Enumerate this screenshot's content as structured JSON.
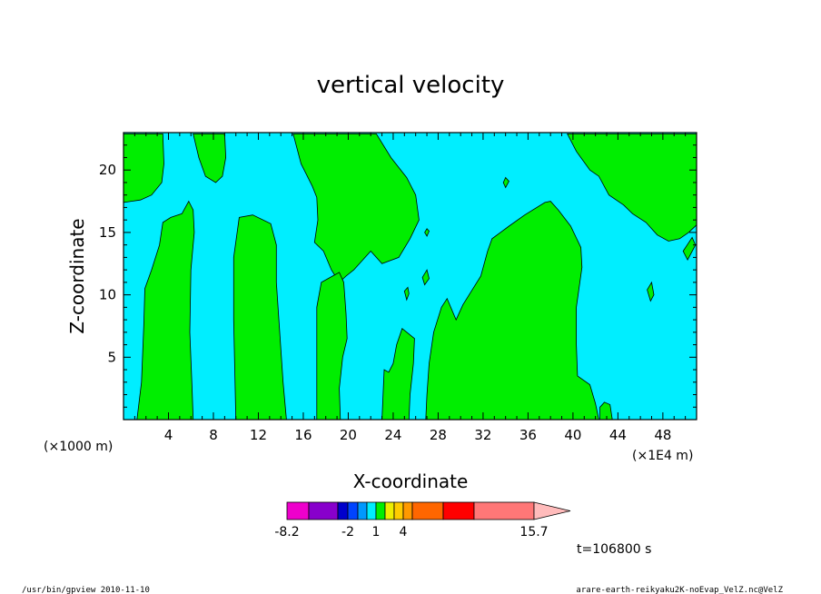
{
  "chart_data": {
    "type": "heatmap",
    "title": "vertical velocity",
    "xlabel": "X-coordinate",
    "ylabel": "Z-coordinate",
    "x_unit_left": "(×1000 m)",
    "x_unit_right": "(×1E4 m)",
    "xlim": [
      0,
      51
    ],
    "ylim": [
      0,
      23
    ],
    "x_ticks": [
      4,
      8,
      12,
      16,
      20,
      24,
      28,
      32,
      36,
      40,
      44,
      48
    ],
    "x_tick_labels": [
      "4",
      "8",
      "12",
      "16",
      "20",
      "24",
      "28",
      "32",
      "36",
      "40",
      "44",
      "48"
    ],
    "y_ticks": [
      5,
      10,
      15,
      20
    ],
    "y_tick_labels": [
      "5",
      "10",
      "15",
      "20"
    ],
    "fill_levels": {
      "background_color": "#00eeff",
      "positive_color": "#00ee00"
    },
    "positive_regions": [
      [
        [
          0,
          22.9
        ],
        [
          3.5,
          22.9
        ],
        [
          3.6,
          20.5
        ],
        [
          3.4,
          19
        ],
        [
          2.5,
          18
        ],
        [
          1.5,
          17.6
        ],
        [
          0.7,
          17.5
        ],
        [
          0,
          17.4
        ]
      ],
      [
        [
          6.2,
          22.9
        ],
        [
          9,
          22.9
        ],
        [
          9.1,
          21
        ],
        [
          8.8,
          19.5
        ],
        [
          8.2,
          19
        ],
        [
          7.3,
          19.5
        ],
        [
          6.7,
          21
        ]
      ],
      [
        [
          15.1,
          22.9
        ],
        [
          22.5,
          22.9
        ],
        [
          23.8,
          21
        ],
        [
          25.2,
          19.4
        ],
        [
          26,
          18
        ],
        [
          26.3,
          16
        ],
        [
          25.5,
          14.5
        ],
        [
          24.5,
          13
        ],
        [
          23,
          12.5
        ],
        [
          22,
          13.5
        ],
        [
          21.5,
          13
        ],
        [
          20.5,
          12
        ],
        [
          19.8,
          11.5
        ],
        [
          19.2,
          11
        ],
        [
          18.5,
          12
        ],
        [
          17.8,
          13.5
        ],
        [
          17,
          14.2
        ],
        [
          17.3,
          16
        ],
        [
          17.2,
          17.8
        ],
        [
          16.8,
          18.7
        ],
        [
          16.3,
          19.6
        ],
        [
          15.8,
          20.5
        ]
      ],
      [
        [
          39.5,
          22.9
        ],
        [
          51,
          22.9
        ],
        [
          51,
          15.6
        ],
        [
          50.3,
          15
        ],
        [
          49.5,
          14.5
        ],
        [
          48.5,
          14.3
        ],
        [
          47.5,
          14.8
        ],
        [
          46.5,
          15.8
        ],
        [
          45.3,
          16.5
        ],
        [
          44.5,
          17.2
        ],
        [
          43.2,
          18
        ],
        [
          42.3,
          19.5
        ],
        [
          41.5,
          20
        ],
        [
          40.3,
          21.5
        ]
      ],
      [
        [
          1.2,
          0
        ],
        [
          6.2,
          0
        ],
        [
          6.1,
          2.5
        ],
        [
          5.9,
          7
        ],
        [
          6,
          12
        ],
        [
          6.3,
          15
        ],
        [
          6.2,
          16.8
        ],
        [
          5.8,
          17.5
        ],
        [
          5.2,
          16.5
        ],
        [
          4.2,
          16.2
        ],
        [
          3.5,
          15.8
        ],
        [
          3.2,
          14
        ],
        [
          2.5,
          12
        ],
        [
          1.9,
          10.5
        ],
        [
          1.8,
          7.5
        ],
        [
          1.6,
          3
        ]
      ],
      [
        [
          10,
          0
        ],
        [
          14.5,
          0
        ],
        [
          14.2,
          3
        ],
        [
          13.9,
          7
        ],
        [
          13.6,
          11
        ],
        [
          13.6,
          14
        ],
        [
          13.1,
          15.7
        ],
        [
          11.5,
          16.4
        ],
        [
          10.3,
          16.2
        ],
        [
          9.8,
          13
        ],
        [
          9.8,
          8
        ],
        [
          9.9,
          4
        ]
      ],
      [
        [
          17.2,
          0
        ],
        [
          19.3,
          0
        ],
        [
          19.2,
          2.5
        ],
        [
          19.5,
          5
        ],
        [
          19.9,
          6.5
        ],
        [
          19.8,
          8.5
        ],
        [
          19.6,
          11
        ],
        [
          19.2,
          11.8
        ],
        [
          18.6,
          11.5
        ],
        [
          17.6,
          11
        ],
        [
          17.2,
          9
        ],
        [
          17.2,
          6
        ],
        [
          17.2,
          3
        ]
      ],
      [
        [
          23,
          0
        ],
        [
          25.4,
          0
        ],
        [
          25.5,
          2
        ],
        [
          25.8,
          4.5
        ],
        [
          25.9,
          6.5
        ],
        [
          24.8,
          7.3
        ],
        [
          24.3,
          6
        ],
        [
          24,
          4.5
        ],
        [
          23.6,
          3.8
        ],
        [
          23.2,
          4
        ]
      ],
      [
        [
          26.9,
          0
        ],
        [
          42.3,
          0
        ],
        [
          42,
          1.3
        ],
        [
          41.5,
          2.8
        ],
        [
          40.4,
          3.5
        ],
        [
          40.3,
          6
        ],
        [
          40.3,
          9
        ],
        [
          40.8,
          12.2
        ],
        [
          40.7,
          13.8
        ],
        [
          39.8,
          15.5
        ],
        [
          38.7,
          16.8
        ],
        [
          38,
          17.5
        ],
        [
          37.5,
          17.4
        ],
        [
          35.7,
          16.4
        ],
        [
          34.3,
          15.5
        ],
        [
          32.8,
          14.5
        ],
        [
          32.4,
          13.5
        ],
        [
          31.8,
          11.5
        ],
        [
          30.2,
          9.2
        ],
        [
          29.6,
          8
        ],
        [
          28.8,
          9.7
        ],
        [
          28.3,
          9
        ],
        [
          27.6,
          7
        ],
        [
          27.2,
          4.5
        ],
        [
          27,
          2
        ]
      ],
      [
        [
          42.4,
          0
        ],
        [
          43.5,
          0
        ],
        [
          43.3,
          1.2
        ],
        [
          42.8,
          1.4
        ],
        [
          42.4,
          1
        ]
      ],
      [
        [
          46.6,
          10.4
        ],
        [
          47,
          11
        ],
        [
          47.2,
          10
        ],
        [
          46.9,
          9.5
        ]
      ],
      [
        [
          49.8,
          13.5
        ],
        [
          50.6,
          14.6
        ],
        [
          50.9,
          14
        ],
        [
          50.2,
          12.8
        ]
      ],
      [
        [
          26.6,
          11.4
        ],
        [
          27,
          12
        ],
        [
          27.2,
          11.3
        ],
        [
          26.8,
          10.8
        ]
      ],
      [
        [
          25,
          10.3
        ],
        [
          25.3,
          10.6
        ],
        [
          25.4,
          10.1
        ],
        [
          25.2,
          9.6
        ]
      ],
      [
        [
          26.8,
          15
        ],
        [
          27,
          15.3
        ],
        [
          27.2,
          15.1
        ],
        [
          27,
          14.7
        ]
      ],
      [
        [
          33.8,
          19
        ],
        [
          34,
          19.4
        ],
        [
          34.3,
          19.1
        ],
        [
          34,
          18.6
        ]
      ]
    ],
    "colorbar": {
      "colors": [
        "#ee00cc",
        "#8800cc",
        "#0000cc",
        "#0044ff",
        "#0099ff",
        "#00eeff",
        "#00ee00",
        "#eeee00",
        "#ffcc00",
        "#ff9900",
        "#ff6600",
        "#ff0000",
        "#ff7777",
        "#ffbbbb"
      ],
      "labels": [
        "-8.2",
        "-2",
        "1",
        "4",
        "15.7"
      ]
    },
    "time_label": "t=106800 s"
  },
  "footer": {
    "left": "/usr/bin/gpview  2010-11-10",
    "right": "arare-earth-reikyaku2K-noEvap_VelZ.nc@VelZ"
  }
}
